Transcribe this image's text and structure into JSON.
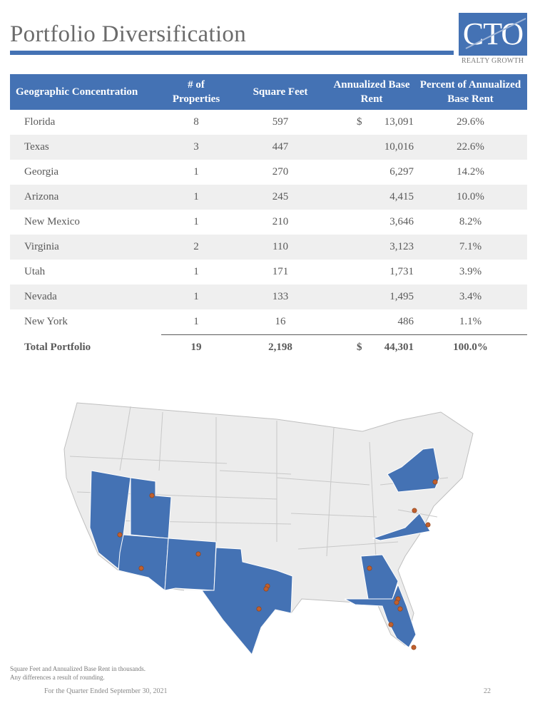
{
  "title": "Portfolio Diversification",
  "logo": {
    "text": "CTO",
    "subtitle": "REALTY GROWTH"
  },
  "table": {
    "headers": [
      "Geographic Concentration",
      "# of Properties",
      "Square Feet",
      "Annualized Base Rent",
      "Percent of Annualized Base Rent"
    ],
    "rows": [
      {
        "state": "Florida",
        "properties": "8",
        "sqft": "597",
        "dollar": "$",
        "rent": "13,091",
        "pct": "29.6%"
      },
      {
        "state": "Texas",
        "properties": "3",
        "sqft": "447",
        "dollar": "",
        "rent": "10,016",
        "pct": "22.6%"
      },
      {
        "state": "Georgia",
        "properties": "1",
        "sqft": "270",
        "dollar": "",
        "rent": "6,297",
        "pct": "14.2%"
      },
      {
        "state": "Arizona",
        "properties": "1",
        "sqft": "245",
        "dollar": "",
        "rent": "4,415",
        "pct": "10.0%"
      },
      {
        "state": "New Mexico",
        "properties": "1",
        "sqft": "210",
        "dollar": "",
        "rent": "3,646",
        "pct": "8.2%"
      },
      {
        "state": "Virginia",
        "properties": "2",
        "sqft": "110",
        "dollar": "",
        "rent": "3,123",
        "pct": "7.1%"
      },
      {
        "state": "Utah",
        "properties": "1",
        "sqft": "171",
        "dollar": "",
        "rent": "1,731",
        "pct": "3.9%"
      },
      {
        "state": "Nevada",
        "properties": "1",
        "sqft": "133",
        "dollar": "",
        "rent": "1,495",
        "pct": "3.4%"
      },
      {
        "state": "New York",
        "properties": "1",
        "sqft": "16",
        "dollar": "",
        "rent": "486",
        "pct": "1.1%"
      }
    ],
    "total": {
      "label": "Total Portfolio",
      "properties": "19",
      "sqft": "2,198",
      "dollar": "$",
      "rent": "44,301",
      "pct": "100.0%"
    }
  },
  "map": {
    "highlight_color": "#4472b4",
    "base_color": "#ececec",
    "marker_color": "#c0602e",
    "highlighted_states": [
      "Nevada",
      "Utah",
      "Arizona",
      "New Mexico",
      "Texas",
      "Georgia",
      "Florida",
      "Virginia",
      "New York"
    ]
  },
  "footnote": {
    "line1": "Square Feet and Annualized Base Rent in thousands.",
    "line2": "Any differences a result of rounding."
  },
  "footer": {
    "text": "For the Quarter Ended September 30, 2021",
    "page": "22"
  }
}
